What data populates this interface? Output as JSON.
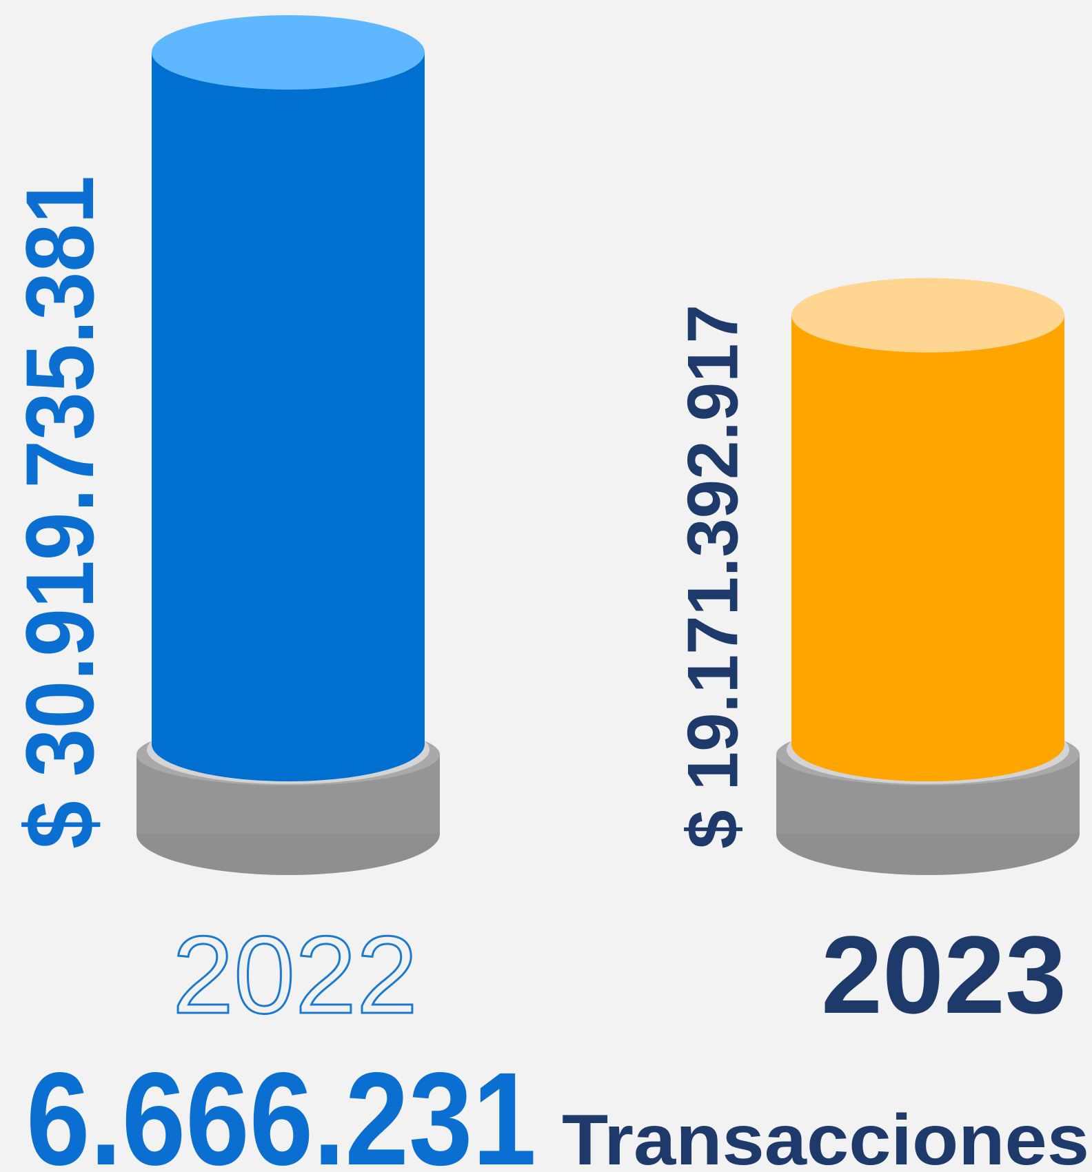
{
  "chart_data": {
    "type": "cylinder-bar",
    "categories": [
      "2022",
      "2023"
    ],
    "values": [
      30919735381,
      19171392917
    ],
    "value_labels": [
      "$ 30.919.735.381",
      "$ 19.171.392.917"
    ],
    "colors": [
      "#0070d0",
      "#ffa500"
    ],
    "top_colors": [
      "#5fb8ff",
      "#ffd592"
    ],
    "label_colors": [
      "#0a6fd0",
      "#1e3a6a"
    ],
    "annotations": [
      {
        "text": "6.666.231"
      },
      {
        "text": "Transacciones"
      }
    ]
  }
}
